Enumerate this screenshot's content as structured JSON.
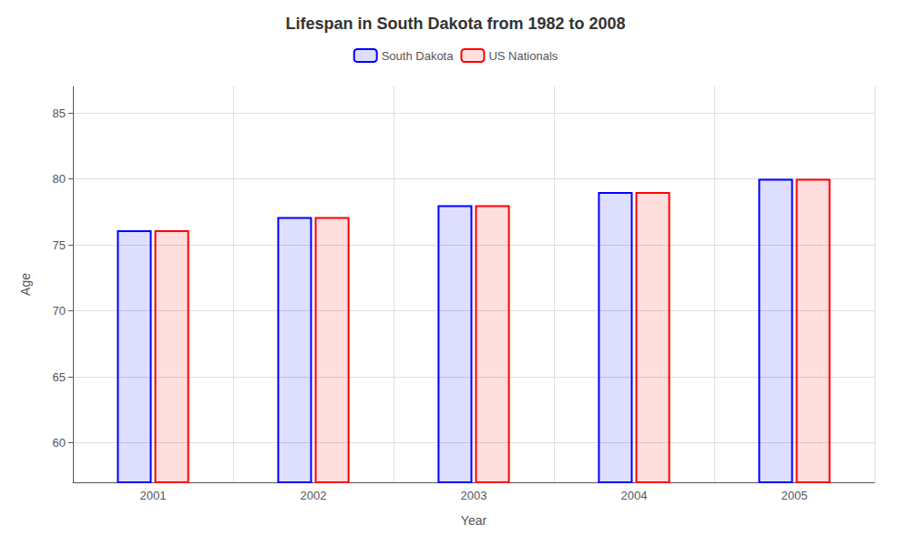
{
  "chart_data": {
    "type": "bar",
    "title": "Lifespan in South Dakota from 1982 to 2008",
    "x_label": "Year",
    "y_label": "Age",
    "categories": [
      "2001",
      "2002",
      "2003",
      "2004",
      "2005"
    ],
    "series": [
      {
        "name": "South Dakota",
        "color": "#0000ff",
        "values": [
          76.1,
          77.1,
          78.0,
          79.0,
          80.0
        ]
      },
      {
        "name": "US Nationals",
        "color": "#ff0000",
        "values": [
          76.1,
          77.1,
          78.0,
          79.0,
          80.0
        ]
      }
    ],
    "ylim": [
      57,
      87
    ],
    "yticks": [
      60,
      65,
      70,
      75,
      80,
      85
    ],
    "grid": true,
    "legend": "top"
  }
}
